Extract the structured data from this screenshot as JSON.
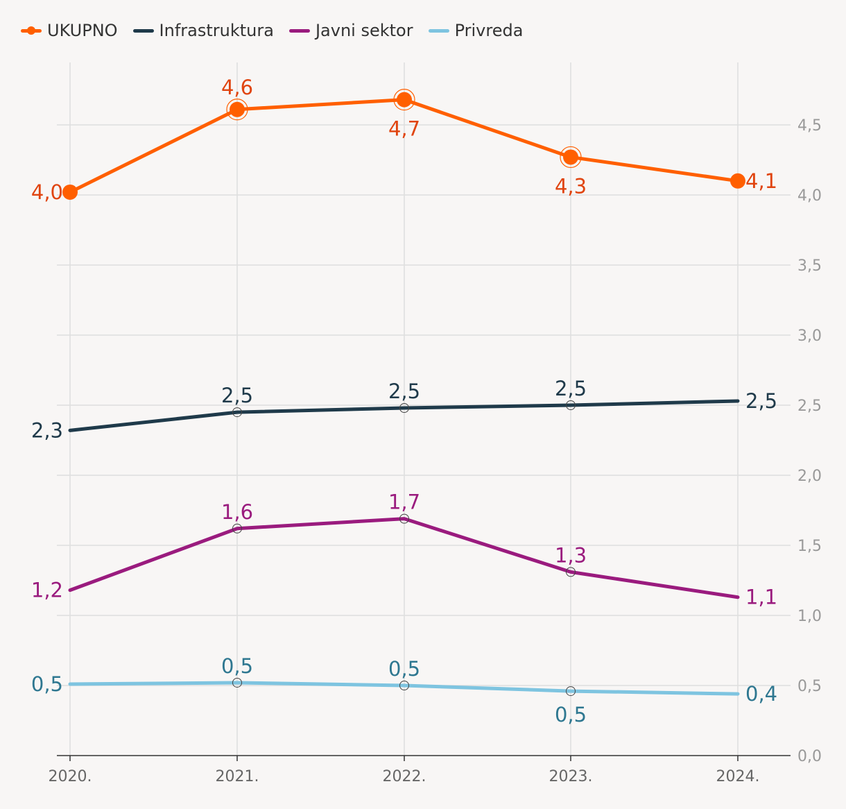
{
  "chart_data": {
    "type": "line",
    "categories": [
      "2020.",
      "2021.",
      "2022.",
      "2023.",
      "2024."
    ],
    "ylim": [
      0,
      5.0
    ],
    "y_ticks": [
      "0,0",
      "0,5",
      "1,0",
      "1,5",
      "2,0",
      "2,5",
      "3,0",
      "3,5",
      "4,0",
      "4,5"
    ],
    "y_axis_side": "right",
    "legend_position": "top-left",
    "grid": true,
    "series": [
      {
        "name": "UKUPNO",
        "color": "#ff5f00",
        "label_color": "#e0440f",
        "values": [
          4.02,
          4.61,
          4.68,
          4.27,
          4.1
        ],
        "labels": [
          "4,0",
          "4,6",
          "4,7",
          "4,3",
          "4,1"
        ],
        "label_positions": [
          "left",
          "above",
          "below",
          "below",
          "right"
        ],
        "marker": "large"
      },
      {
        "name": "Infrastruktura",
        "color": "#1f3a4a",
        "label_color": "#1f3a4a",
        "values": [
          2.32,
          2.45,
          2.48,
          2.5,
          2.53
        ],
        "labels": [
          "2,3",
          "2,5",
          "2,5",
          "2,5",
          "2,5"
        ],
        "label_positions": [
          "left",
          "above",
          "above",
          "above",
          "right"
        ],
        "marker": "small"
      },
      {
        "name": "Javni sektor",
        "color": "#9a1b7e",
        "label_color": "#9a1b7e",
        "values": [
          1.18,
          1.62,
          1.69,
          1.31,
          1.13
        ],
        "labels": [
          "1,2",
          "1,6",
          "1,7",
          "1,3",
          "1,1"
        ],
        "label_positions": [
          "left",
          "above",
          "above",
          "above",
          "right"
        ],
        "marker": "small"
      },
      {
        "name": "Privreda",
        "color": "#7ec4e0",
        "label_color": "#2e7790",
        "values": [
          0.51,
          0.52,
          0.5,
          0.46,
          0.44
        ],
        "labels": [
          "0,5",
          "0,5",
          "0,5",
          "0,5",
          "0,4"
        ],
        "label_positions": [
          "left",
          "above",
          "above",
          "below",
          "right"
        ],
        "marker": "small"
      }
    ]
  }
}
